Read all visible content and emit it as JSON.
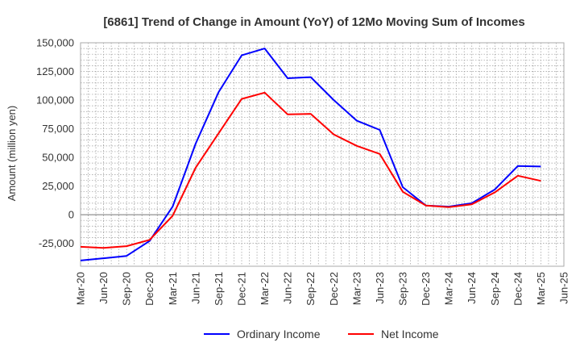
{
  "chart_data": {
    "type": "line",
    "title": "[6861]  Trend of Change in Amount (YoY) of 12Mo Moving Sum of Incomes",
    "xlabel": "",
    "ylabel": "Amount (million yen)",
    "ylim": [
      -45000,
      150000
    ],
    "yticks": [
      150000,
      125000,
      100000,
      75000,
      50000,
      25000,
      0,
      -25000
    ],
    "ytick_labels": [
      "150,000",
      "125,000",
      "100,000",
      "75,000",
      "50,000",
      "25,000",
      "0",
      "-25,000"
    ],
    "categories": [
      "Mar-20",
      "Jun-20",
      "Sep-20",
      "Dec-20",
      "Mar-21",
      "Jun-21",
      "Sep-21",
      "Dec-21",
      "Mar-22",
      "Jun-22",
      "Sep-22",
      "Dec-22",
      "Mar-23",
      "Jun-23",
      "Sep-23",
      "Dec-23",
      "Mar-24",
      "Jun-24",
      "Sep-24",
      "Dec-24",
      "Mar-25",
      "Jun-25"
    ],
    "grid": true,
    "legend_position": "bottom",
    "series": [
      {
        "name": "Ordinary Income",
        "color": "#0000ff",
        "values": [
          -40000,
          -38000,
          -36000,
          -23000,
          7000,
          62000,
          107000,
          139000,
          145000,
          119000,
          120000,
          100000,
          82000,
          74000,
          24000,
          8000,
          7000,
          10000,
          22000,
          42500,
          42000,
          null
        ]
      },
      {
        "name": "Net Income",
        "color": "#ff0000",
        "values": [
          -28000,
          -29000,
          -27500,
          -22000,
          -1000,
          41000,
          71000,
          101000,
          106500,
          87500,
          88000,
          70000,
          60000,
          53000,
          20000,
          8000,
          6500,
          9000,
          19500,
          34000,
          29500,
          null
        ]
      }
    ]
  }
}
